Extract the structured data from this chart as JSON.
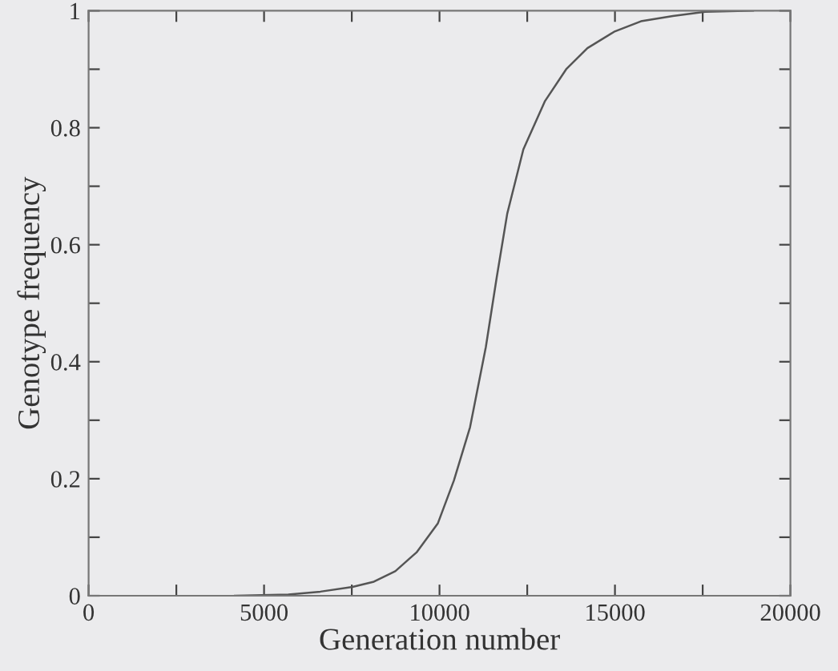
{
  "chart_data": {
    "type": "line",
    "xlabel": "Generation number",
    "ylabel": "Genotype frequency",
    "xlim": [
      0,
      20000
    ],
    "ylim": [
      0,
      1
    ],
    "xticks": [
      0,
      {
        "value": 2500,
        "label": null
      },
      5000,
      {
        "value": 7500,
        "label": null
      },
      10000,
      {
        "value": 12500,
        "label": null
      },
      15000,
      {
        "value": 17500,
        "label": null
      },
      20000
    ],
    "yticks": [
      0,
      {
        "value": 0.1,
        "label": null
      },
      0.2,
      {
        "value": 0.3,
        "label": null
      },
      0.4,
      {
        "value": 0.5,
        "label": null
      },
      0.6,
      {
        "value": 0.7,
        "label": null
      },
      0.8,
      {
        "value": 0.9,
        "label": null
      },
      1
    ],
    "grid": false,
    "marker": "none",
    "line_style": "solid",
    "series": [
      {
        "color": "#555555",
        "x": [
          4170,
          5690,
          6605,
          7520,
          8130,
          8740,
          9345,
          9955,
          10410,
          10870,
          11320,
          11630,
          11930,
          12390,
          13000,
          13610,
          14215,
          14975,
          15740,
          16650,
          17565,
          18935
        ],
        "values": [
          0,
          0.002,
          0.007,
          0.015,
          0.024,
          0.042,
          0.074,
          0.124,
          0.197,
          0.288,
          0.425,
          0.544,
          0.653,
          0.763,
          0.845,
          0.9,
          0.936,
          0.964,
          0.982,
          0.991,
          0.998,
          1.0
        ]
      }
    ]
  }
}
